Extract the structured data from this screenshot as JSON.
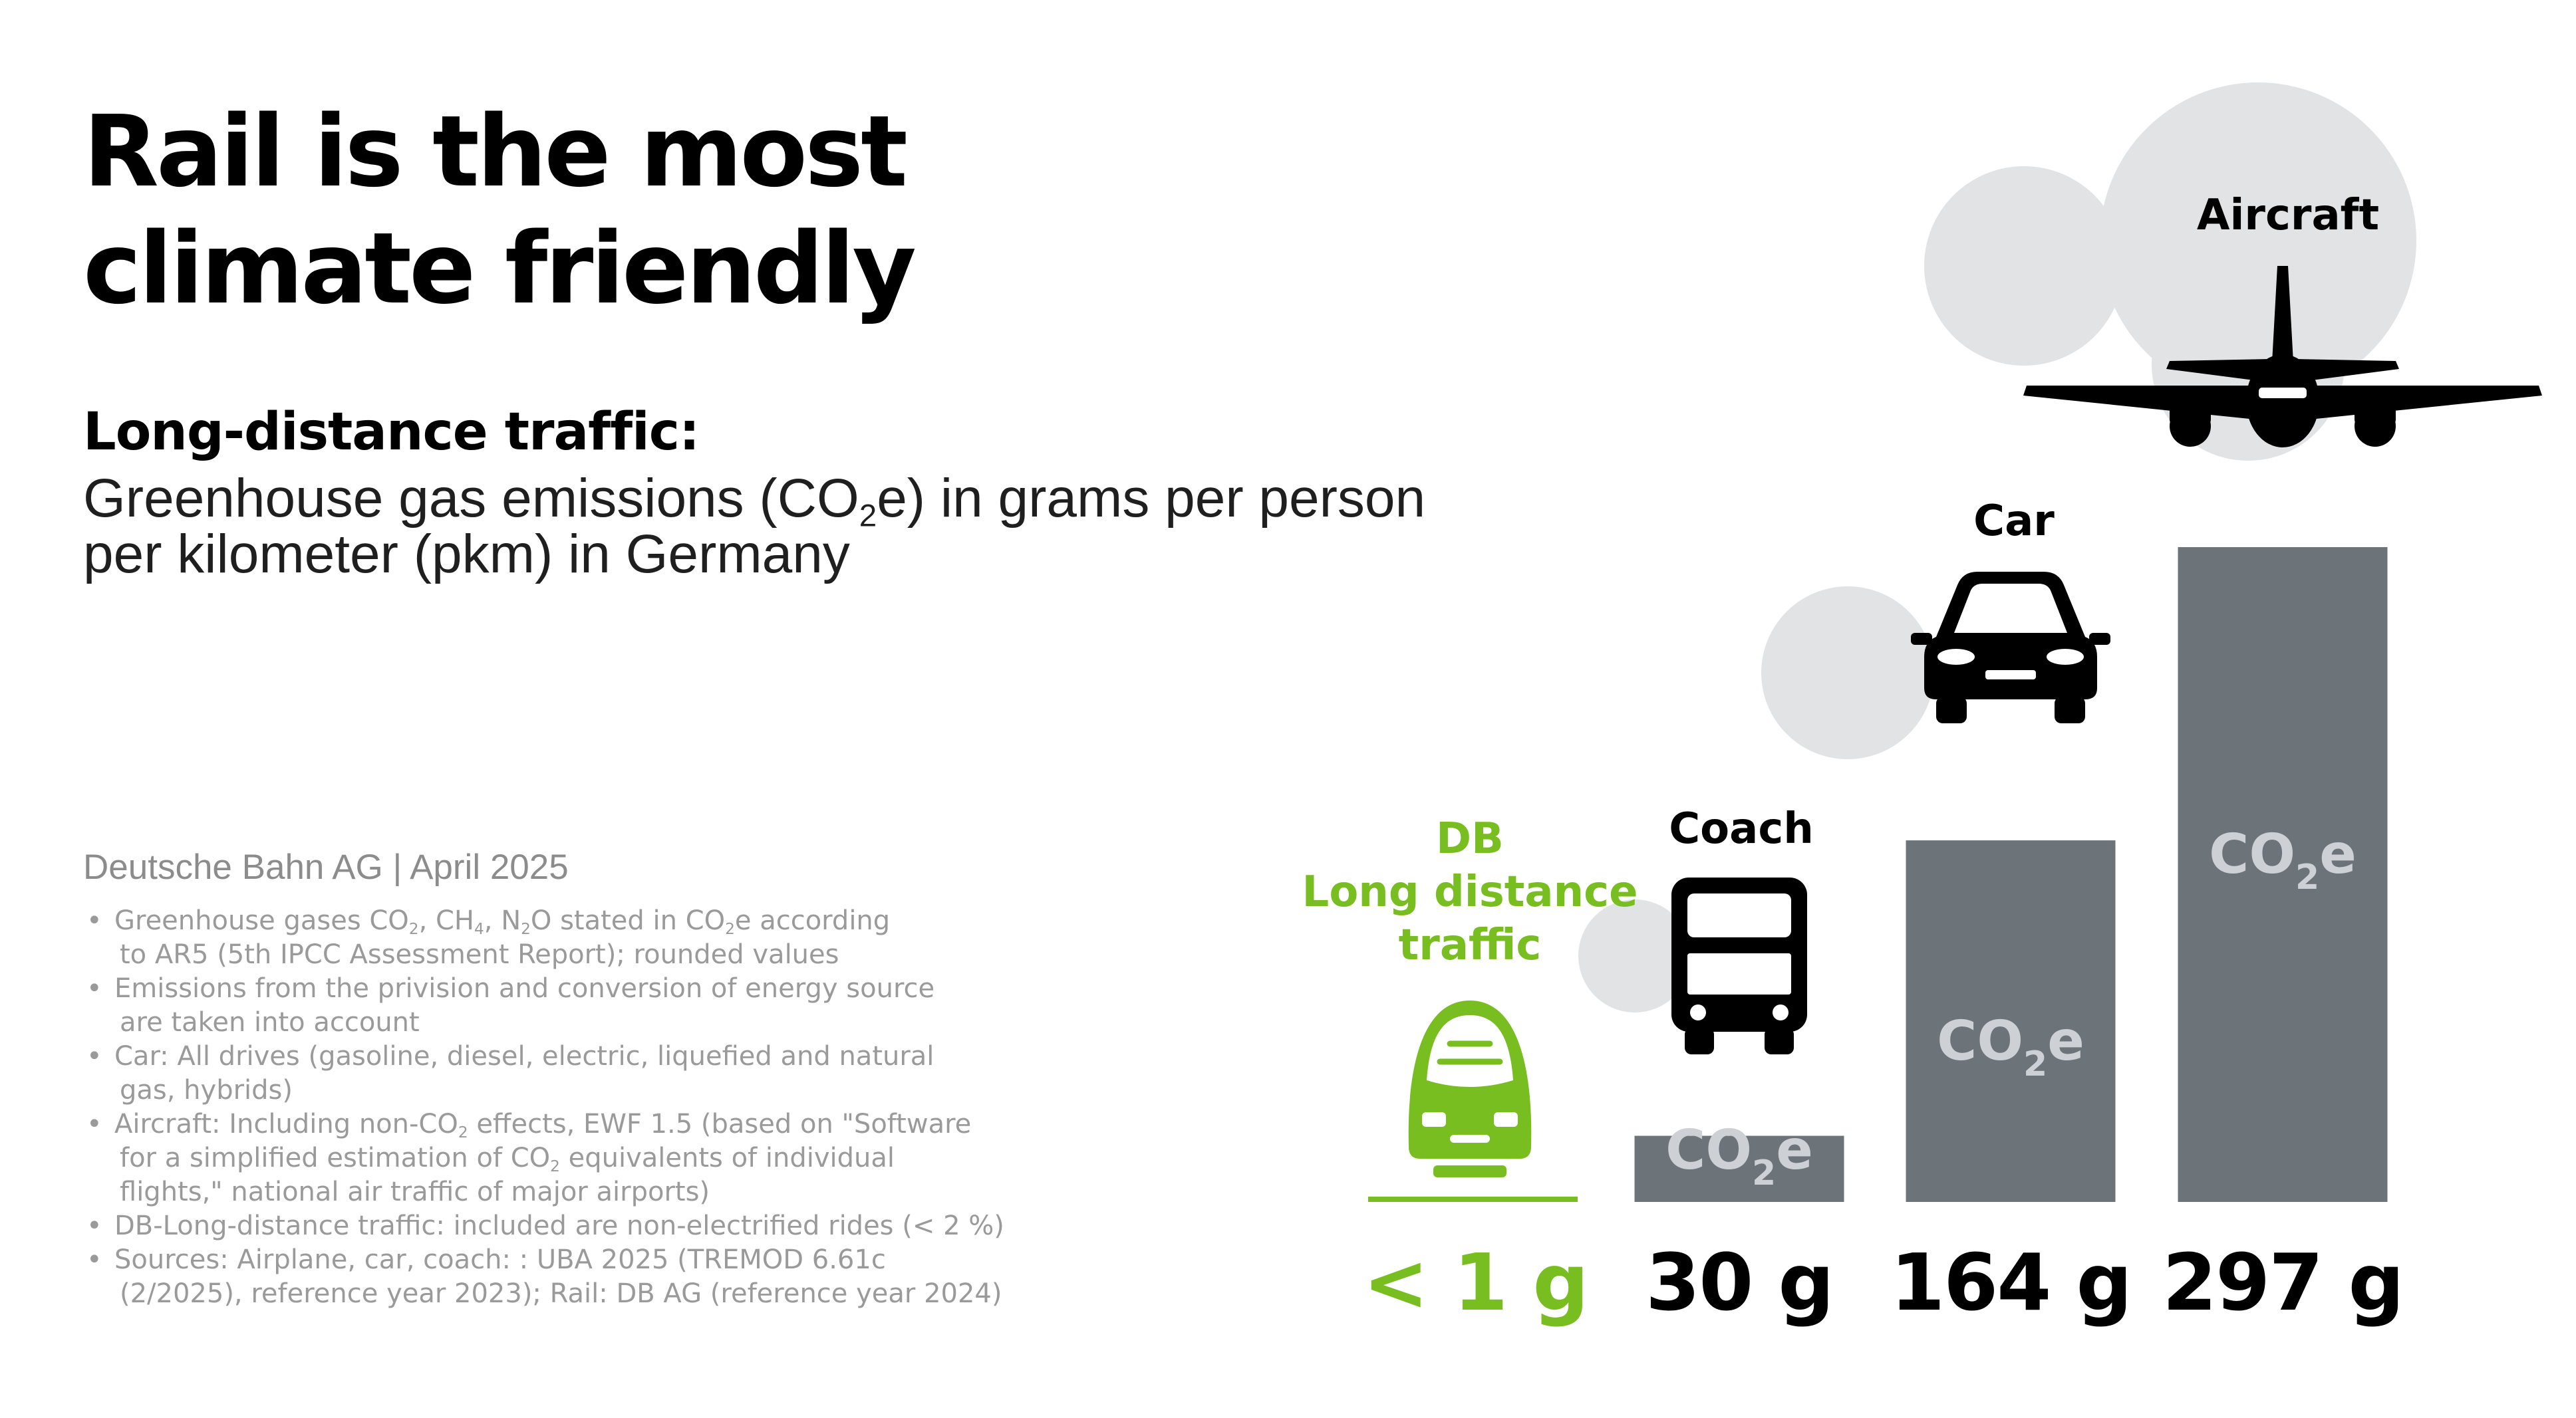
{
  "title_lines": [
    "Rail is the most",
    "climate friendly"
  ],
  "subheading": "Long-distance traffic:",
  "description": {
    "line1_before": "Greenhouse gas emissions (CO",
    "line1_sub": "2",
    "line1_after": "e) in grams per person",
    "line2": "per kilometer (pkm) in Germany"
  },
  "source": "Deutsche Bahn AG | April 2025",
  "notes": {
    "ghg": {
      "line1_a": "Greenhouse gases CO",
      "line1_b": "2",
      "line1_c": ", CH",
      "line1_d": "4",
      "line1_e": ", N",
      "line1_f": "2",
      "line1_g": "O stated in CO",
      "line1_h": "2",
      "line1_i": "e according",
      "line2": "to AR5 (5th IPCC Assessment Report); rounded values"
    },
    "energy": {
      "line1": "Emissions from the privision and conversion of energy source",
      "line2": "are taken into account"
    },
    "car": {
      "line1": "Car: All drives (gasoline, diesel, electric, liquefied and natural",
      "line2": "gas, hybrids)"
    },
    "aircraft": {
      "line1_a": "Aircraft: Including non-CO",
      "line1_b": "2",
      "line1_c": " effects, EWF 1.5 (based on \"Software",
      "line2_a": "for a simplified estimation of CO",
      "line2_b": "2",
      "line2_c": " equivalents of individual",
      "line3": "flights,\" national air traffic of major airports)"
    },
    "db": {
      "line1": "DB-Long-distance traffic: included are non-electrified rides (< 2 %)"
    },
    "sources": {
      "line1": "Sources: Airplane, car, coach: : UBA 2025 (TREMOD 6.61c",
      "line2": "(2/2025), reference year 2023); Rail: DB AG (reference year 2024)"
    }
  },
  "chart_data": {
    "type": "bar",
    "categories": [
      "DB Long distance traffic",
      "Coach",
      "Car",
      "Aircraft"
    ],
    "values": [
      0.5,
      30,
      164,
      297
    ],
    "value_labels": [
      "< 1 g",
      "30 g",
      "164 g",
      "297 g"
    ],
    "category_labels": [
      [
        "DB",
        "Long distance",
        "traffic"
      ],
      [
        "Coach"
      ],
      [
        "Car"
      ],
      [
        "Aircraft"
      ]
    ],
    "bar_label": {
      "main": "CO",
      "sub": "2",
      "tail": "e"
    },
    "icons": [
      "train-icon",
      "bus-icon",
      "car-icon",
      "airplane-icon"
    ],
    "ylim": [
      0,
      297
    ],
    "colors": {
      "bar": "#6c7379",
      "highlight": "#78be20",
      "cloud": "#e1e3e5",
      "bar_text": "#cdd1d5",
      "text": "#000000"
    }
  }
}
